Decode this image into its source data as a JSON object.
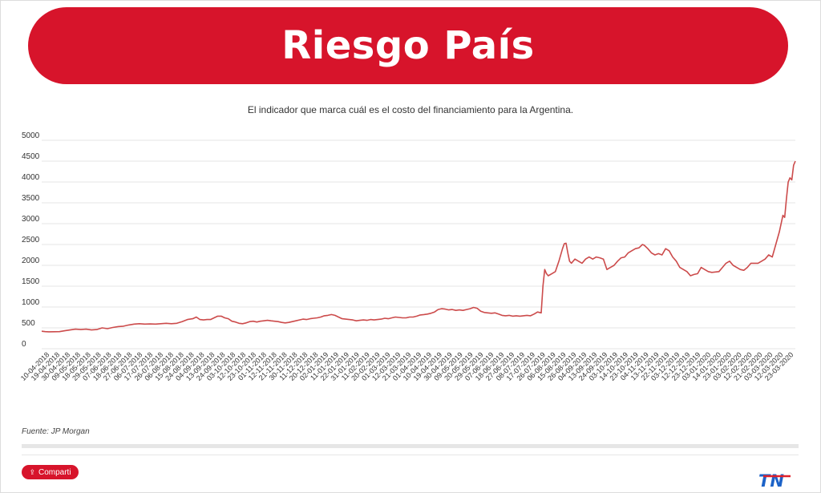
{
  "header": {
    "title": "Riesgo País"
  },
  "subtitle": "El indicador que marca cuál es el costo del financiamiento para la Argentina.",
  "source": "Fuente: JP Morgan",
  "share": {
    "label": "Comparti"
  },
  "logo": {
    "text": "TN"
  },
  "colors": {
    "accent": "#d7142b",
    "line": "#cc4b4b",
    "grid": "#e6e6e6"
  },
  "chart_data": {
    "type": "line",
    "title": "",
    "xlabel": "",
    "ylabel": "",
    "ylim": [
      0,
      5000
    ],
    "yticks": [
      0,
      500,
      1000,
      1500,
      2000,
      2500,
      3000,
      3500,
      4000,
      4500,
      5000
    ],
    "grid": true,
    "legend": "none",
    "x_tick_labels": [
      "10-04-2018",
      "19-04-2018",
      "30-04-2018",
      "09-05-2018",
      "18-05-2018",
      "29-05-2018",
      "07-06-2018",
      "18-06-2018",
      "27-06-2018",
      "06-07-2018",
      "17-07-2018",
      "26-07-2018",
      "06-08-2018",
      "15-08-2018",
      "24-08-2018",
      "04-09-2018",
      "13-09-2018",
      "24-09-2018",
      "03-10-2018",
      "12-10-2018",
      "23-10-2018",
      "01-11-2018",
      "12-11-2018",
      "21-11-2018",
      "30-11-2018",
      "11-12-2018",
      "20-12-2018",
      "02-01-2019",
      "11-01-2019",
      "22-01-2019",
      "31-01-2019",
      "11-02-2019",
      "20-02-2019",
      "01-03-2019",
      "12-03-2019",
      "21-03-2019",
      "01-04-2019",
      "10-04-2019",
      "19-04-2019",
      "30-04-2019",
      "09-05-2019",
      "20-05-2019",
      "29-05-2019",
      "07-06-2019",
      "18-06-2019",
      "27-06-2019",
      "08-07-2019",
      "17-07-2019",
      "26-07-2019",
      "06-08-2019",
      "15-08-2019",
      "26-08-2019",
      "04-09-2019",
      "13-09-2019",
      "24-09-2019",
      "03-10-2019",
      "14-10-2019",
      "23-10-2019",
      "04-11-2019",
      "13-11-2019",
      "22-11-2019",
      "03-12-2019",
      "12-12-2019",
      "23-12-2019",
      "03-01-2020",
      "14-01-2020",
      "23-01-2020",
      "03-02-2020",
      "12-02-2020",
      "21-02-2020",
      "03-03-2020",
      "12-03-2020",
      "23-03-2020"
    ],
    "series": [
      {
        "values": [
          [
            0,
            420
          ],
          [
            2,
            410
          ],
          [
            4,
            405
          ],
          [
            7,
            408
          ],
          [
            10,
            410
          ],
          [
            13,
            430
          ],
          [
            16,
            450
          ],
          [
            19,
            470
          ],
          [
            22,
            460
          ],
          [
            25,
            470
          ],
          [
            28,
            450
          ],
          [
            31,
            460
          ],
          [
            34,
            500
          ],
          [
            37,
            480
          ],
          [
            40,
            510
          ],
          [
            43,
            530
          ],
          [
            46,
            540
          ],
          [
            49,
            570
          ],
          [
            52,
            590
          ],
          [
            55,
            600
          ],
          [
            58,
            590
          ],
          [
            61,
            595
          ],
          [
            64,
            590
          ],
          [
            67,
            600
          ],
          [
            70,
            610
          ],
          [
            73,
            600
          ],
          [
            76,
            610
          ],
          [
            79,
            650
          ],
          [
            82,
            700
          ],
          [
            85,
            720
          ],
          [
            87,
            760
          ],
          [
            89,
            700
          ],
          [
            91,
            690
          ],
          [
            93,
            700
          ],
          [
            95,
            700
          ],
          [
            97,
            740
          ],
          [
            99,
            780
          ],
          [
            101,
            780
          ],
          [
            103,
            740
          ],
          [
            105,
            720
          ],
          [
            107,
            660
          ],
          [
            109,
            640
          ],
          [
            111,
            610
          ],
          [
            113,
            600
          ],
          [
            115,
            620
          ],
          [
            117,
            650
          ],
          [
            119,
            660
          ],
          [
            121,
            640
          ],
          [
            123,
            660
          ],
          [
            125,
            670
          ],
          [
            127,
            680
          ],
          [
            129,
            670
          ],
          [
            131,
            660
          ],
          [
            133,
            650
          ],
          [
            135,
            630
          ],
          [
            137,
            620
          ],
          [
            139,
            630
          ],
          [
            141,
            650
          ],
          [
            143,
            670
          ],
          [
            145,
            690
          ],
          [
            147,
            710
          ],
          [
            149,
            700
          ],
          [
            151,
            720
          ],
          [
            153,
            730
          ],
          [
            155,
            740
          ],
          [
            157,
            760
          ],
          [
            159,
            790
          ],
          [
            161,
            800
          ],
          [
            163,
            820
          ],
          [
            165,
            800
          ],
          [
            167,
            760
          ],
          [
            169,
            720
          ],
          [
            171,
            710
          ],
          [
            173,
            700
          ],
          [
            175,
            690
          ],
          [
            177,
            670
          ],
          [
            179,
            680
          ],
          [
            181,
            690
          ],
          [
            183,
            680
          ],
          [
            185,
            700
          ],
          [
            187,
            690
          ],
          [
            189,
            700
          ],
          [
            191,
            710
          ],
          [
            193,
            730
          ],
          [
            195,
            720
          ],
          [
            197,
            740
          ],
          [
            199,
            760
          ],
          [
            201,
            750
          ],
          [
            203,
            740
          ],
          [
            205,
            740
          ],
          [
            207,
            760
          ],
          [
            209,
            760
          ],
          [
            211,
            780
          ],
          [
            213,
            810
          ],
          [
            215,
            820
          ],
          [
            217,
            830
          ],
          [
            219,
            850
          ],
          [
            221,
            880
          ],
          [
            223,
            940
          ],
          [
            225,
            960
          ],
          [
            227,
            950
          ],
          [
            229,
            930
          ],
          [
            231,
            940
          ],
          [
            233,
            920
          ],
          [
            235,
            930
          ],
          [
            237,
            920
          ],
          [
            239,
            940
          ],
          [
            241,
            960
          ],
          [
            243,
            990
          ],
          [
            245,
            970
          ],
          [
            247,
            900
          ],
          [
            249,
            870
          ],
          [
            251,
            860
          ],
          [
            253,
            850
          ],
          [
            255,
            860
          ],
          [
            257,
            830
          ],
          [
            259,
            800
          ],
          [
            261,
            790
          ],
          [
            263,
            800
          ],
          [
            265,
            780
          ],
          [
            267,
            790
          ],
          [
            269,
            780
          ],
          [
            271,
            790
          ],
          [
            273,
            800
          ],
          [
            275,
            790
          ],
          [
            277,
            830
          ],
          [
            279,
            880
          ],
          [
            281,
            860
          ],
          [
            282,
            1500
          ],
          [
            283,
            1900
          ],
          [
            284,
            1800
          ],
          [
            285,
            1750
          ],
          [
            287,
            1800
          ],
          [
            289,
            1850
          ],
          [
            291,
            2100
          ],
          [
            293,
            2400
          ],
          [
            294,
            2520
          ],
          [
            295,
            2530
          ],
          [
            296,
            2300
          ],
          [
            297,
            2100
          ],
          [
            298,
            2050
          ],
          [
            300,
            2150
          ],
          [
            302,
            2100
          ],
          [
            304,
            2050
          ],
          [
            306,
            2150
          ],
          [
            308,
            2200
          ],
          [
            310,
            2150
          ],
          [
            312,
            2200
          ],
          [
            314,
            2180
          ],
          [
            316,
            2150
          ],
          [
            318,
            1900
          ],
          [
            320,
            1950
          ],
          [
            322,
            2000
          ],
          [
            324,
            2100
          ],
          [
            326,
            2180
          ],
          [
            328,
            2200
          ],
          [
            330,
            2300
          ],
          [
            332,
            2350
          ],
          [
            334,
            2400
          ],
          [
            336,
            2420
          ],
          [
            338,
            2500
          ],
          [
            339,
            2480
          ],
          [
            341,
            2400
          ],
          [
            343,
            2300
          ],
          [
            345,
            2250
          ],
          [
            347,
            2280
          ],
          [
            349,
            2250
          ],
          [
            351,
            2400
          ],
          [
            353,
            2350
          ],
          [
            355,
            2200
          ],
          [
            357,
            2100
          ],
          [
            359,
            1950
          ],
          [
            361,
            1900
          ],
          [
            363,
            1850
          ],
          [
            365,
            1750
          ],
          [
            367,
            1780
          ],
          [
            369,
            1800
          ],
          [
            371,
            1950
          ],
          [
            373,
            1900
          ],
          [
            375,
            1850
          ],
          [
            377,
            1830
          ],
          [
            379,
            1840
          ],
          [
            381,
            1850
          ],
          [
            383,
            1950
          ],
          [
            385,
            2050
          ],
          [
            387,
            2100
          ],
          [
            389,
            2000
          ],
          [
            391,
            1950
          ],
          [
            393,
            1900
          ],
          [
            395,
            1880
          ],
          [
            397,
            1950
          ],
          [
            399,
            2050
          ],
          [
            401,
            2050
          ],
          [
            403,
            2050
          ],
          [
            405,
            2100
          ],
          [
            407,
            2150
          ],
          [
            409,
            2250
          ],
          [
            411,
            2200
          ],
          [
            413,
            2500
          ],
          [
            415,
            2800
          ],
          [
            417,
            3200
          ],
          [
            418,
            3150
          ],
          [
            419,
            3600
          ],
          [
            420,
            4000
          ],
          [
            421,
            4100
          ],
          [
            422,
            4050
          ],
          [
            423,
            4400
          ],
          [
            424,
            4500
          ]
        ]
      }
    ],
    "x_range": [
      0,
      424
    ]
  }
}
